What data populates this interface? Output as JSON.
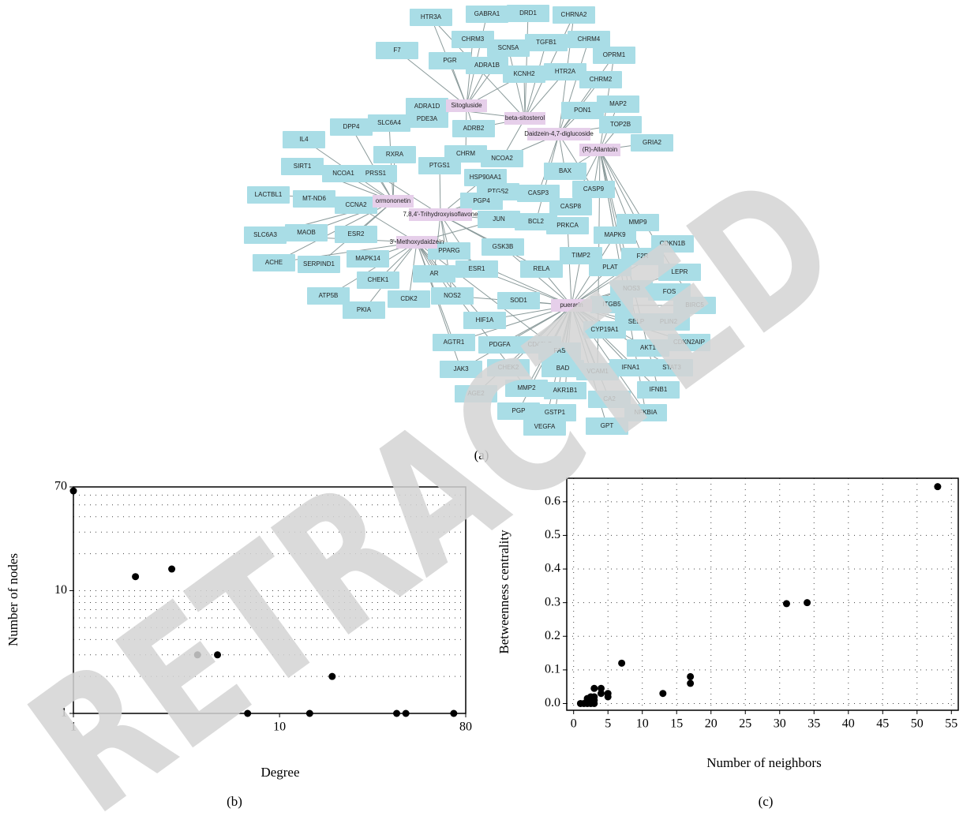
{
  "panels": [
    "(a)",
    "(b)",
    "(c)"
  ],
  "watermark": "RETRACTED",
  "network": {
    "hubs": [
      "Sitogluside",
      "beta-sitosterol",
      "Daidzein-4,7-diglucoside",
      "(R)-Allantoin",
      "ormononetin",
      "7,8,4'-Trihydroxyisoflavone",
      "3'-Methoxydaidzein",
      "puerarin"
    ],
    "nodes": [
      "HTR3A",
      "GABRA1",
      "DRD1",
      "CHRNA2",
      "F7",
      "CHRM3",
      "SCN5A",
      "TGFB1",
      "CHRM4",
      "OPRM1",
      "PGR",
      "ADRA1B",
      "KCNH2",
      "HTR2A",
      "CHRM2",
      "ADRA1D",
      "PON1",
      "MAP2",
      "TOP2B",
      "GRIA2",
      "IL4",
      "DPP4",
      "SLC6A4",
      "PDE3A",
      "ADRB2",
      "RXRA",
      "CHRM",
      "NCOA2",
      "SIRT1",
      "NCOA1",
      "PRSS1",
      "PTGS1",
      "HSP90AA1",
      "BAX",
      "LACTBL1",
      "MT-ND6",
      "CCNA2",
      "PTGS2",
      "CASP3",
      "CASP9",
      "PGP4",
      "CASP8",
      "JUN",
      "BCL2",
      "PRKCA",
      "SLC6A3",
      "MAOB",
      "ESR2",
      "MAPK9",
      "MMP9",
      "CDKN1B",
      "ACHE",
      "SERPIND1",
      "MAPK14",
      "PPARG",
      "GSK3B",
      "ESR1",
      "RELA",
      "TIMP2",
      "PLAT",
      "F2R",
      "LEPR",
      "CHEK1",
      "AR",
      "NOS3",
      "FOS",
      "BIRC5",
      "ATP5B",
      "CDK2",
      "NOS2",
      "SOD1",
      "ITGB5",
      "SELP",
      "PLIN2",
      "PKIA",
      "HIF1A",
      "CYP19A1",
      "CDKN2AIP",
      "AGTR1",
      "PDGFA",
      "CD40LG",
      "FAS",
      "AKT1",
      "STAT3",
      "JAK3",
      "CHEK2",
      "BAD",
      "VCAM1",
      "IFNA1",
      "AGE2",
      "MMP2",
      "AKR1B1",
      "CA2",
      "IFNB1",
      "PGP",
      "GSTP1",
      "NFKBIA",
      "VEGFA",
      "GPT"
    ]
  },
  "chart_data": [
    {
      "type": "scatter",
      "x_label": "Degree",
      "y_label": "Number of nodes",
      "color": "#000000",
      "x": [
        1,
        2,
        3,
        4,
        5,
        7,
        14,
        18,
        37,
        41,
        70
      ],
      "values": [
        65,
        13,
        15,
        3,
        3,
        1,
        1,
        2,
        1,
        1,
        1
      ],
      "xlim": [
        1,
        80
      ],
      "ylim": [
        1,
        70
      ],
      "xticks": [
        1,
        10,
        80
      ],
      "yticks": [
        1,
        10,
        70
      ],
      "xlog": true,
      "ylog": true,
      "grid": true
    },
    {
      "type": "scatter",
      "x_label": "Number of neighbors",
      "y_label": "Betweenness centrality",
      "color": "#000000",
      "x": [
        53,
        31,
        34,
        7,
        17,
        17,
        13,
        5,
        5,
        4,
        4,
        3,
        3,
        2,
        2,
        2.5,
        1,
        1.5,
        2,
        3,
        3,
        2.5
      ],
      "values": [
        0.645,
        0.297,
        0.3,
        0.12,
        0.08,
        0.06,
        0.03,
        0.03,
        0.02,
        0.045,
        0.03,
        0.045,
        0.02,
        0.015,
        0.01,
        0.02,
        0,
        0,
        0,
        0,
        0.01,
        0
      ],
      "xlim": [
        -1,
        56
      ],
      "ylim": [
        -0.02,
        0.67
      ],
      "xticks": [
        0,
        5,
        10,
        15,
        20,
        25,
        30,
        35,
        40,
        45,
        50,
        55
      ],
      "yticks": [
        {
          "value": 0,
          "label": "0.0"
        },
        0.1,
        0.2,
        0.3,
        0.4,
        0.5,
        0.6
      ],
      "xlog": false,
      "ylog": false,
      "grid": true
    }
  ]
}
